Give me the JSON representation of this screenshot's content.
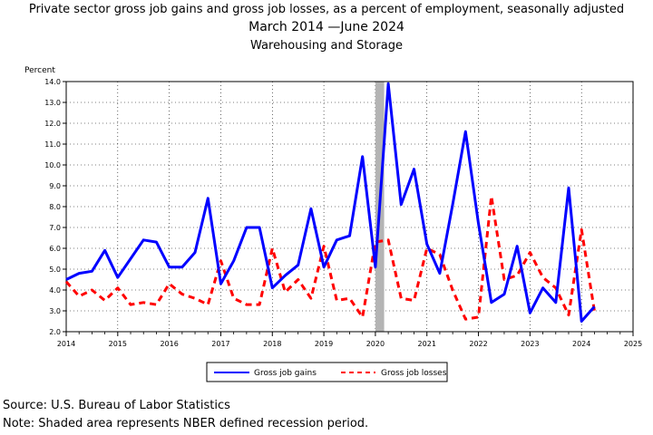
{
  "title_line1": "Private sector gross job gains and gross job losses, as a percent of employment, seasonally adjusted",
  "title_line2": "March 2014 —June 2024",
  "title_line3": "Warehousing and Storage",
  "source": "Source: U.S. Bureau of Labor Statistics",
  "note": "Note: Shaded area represents NBER defined recession period.",
  "chart_data": {
    "type": "line",
    "ylabel": "Percent",
    "ylim": [
      2.0,
      14.0
    ],
    "yticks": [
      "2.0",
      "3.0",
      "4.0",
      "5.0",
      "6.0",
      "7.0",
      "8.0",
      "9.0",
      "10.0",
      "11.0",
      "12.0",
      "13.0",
      "14.0"
    ],
    "xlim": [
      2014,
      2025
    ],
    "xticks": [
      "2014",
      "2015",
      "2016",
      "2017",
      "2018",
      "2019",
      "2020",
      "2021",
      "2022",
      "2023",
      "2024",
      "2025"
    ],
    "recession": [
      2020.0,
      2020.17
    ],
    "x": [
      2014.0,
      2014.25,
      2014.5,
      2014.75,
      2015.0,
      2015.25,
      2015.5,
      2015.75,
      2016.0,
      2016.25,
      2016.5,
      2016.75,
      2017.0,
      2017.25,
      2017.5,
      2017.75,
      2018.0,
      2018.25,
      2018.5,
      2018.75,
      2019.0,
      2019.25,
      2019.5,
      2019.75,
      2020.0,
      2020.25,
      2020.5,
      2020.75,
      2021.0,
      2021.25,
      2021.5,
      2021.75,
      2022.0,
      2022.25,
      2022.5,
      2022.75,
      2023.0,
      2023.25,
      2023.5,
      2023.75,
      2024.0,
      2024.25
    ],
    "series": [
      {
        "name": "Gross job gains",
        "color": "#0000ff",
        "dash": "solid",
        "values": [
          4.5,
          4.8,
          4.9,
          5.9,
          4.6,
          5.5,
          6.4,
          6.3,
          5.1,
          5.1,
          5.8,
          8.4,
          4.3,
          5.4,
          7.0,
          7.0,
          4.1,
          4.7,
          5.2,
          7.9,
          5.1,
          6.4,
          6.6,
          10.4,
          5.1,
          13.9,
          8.1,
          9.8,
          6.2,
          4.8,
          8.1,
          11.6,
          7.2,
          3.4,
          3.8,
          6.1,
          2.9,
          4.1,
          3.4,
          8.9,
          2.5,
          3.2
        ]
      },
      {
        "name": "Gross job losses",
        "color": "#ff0000",
        "dash": "dashed",
        "values": [
          4.4,
          3.7,
          4.0,
          3.5,
          4.1,
          3.3,
          3.4,
          3.3,
          4.3,
          3.8,
          3.6,
          3.3,
          5.4,
          3.6,
          3.3,
          3.3,
          6.0,
          3.9,
          4.5,
          3.6,
          6.1,
          3.5,
          3.6,
          2.7,
          6.3,
          6.4,
          3.6,
          3.5,
          6.0,
          5.7,
          4.0,
          2.6,
          2.7,
          8.5,
          4.5,
          4.7,
          5.8,
          4.6,
          4.1,
          2.8,
          6.9,
          3.0
        ]
      }
    ],
    "legend_placement": "bottom-center",
    "grid": true
  }
}
